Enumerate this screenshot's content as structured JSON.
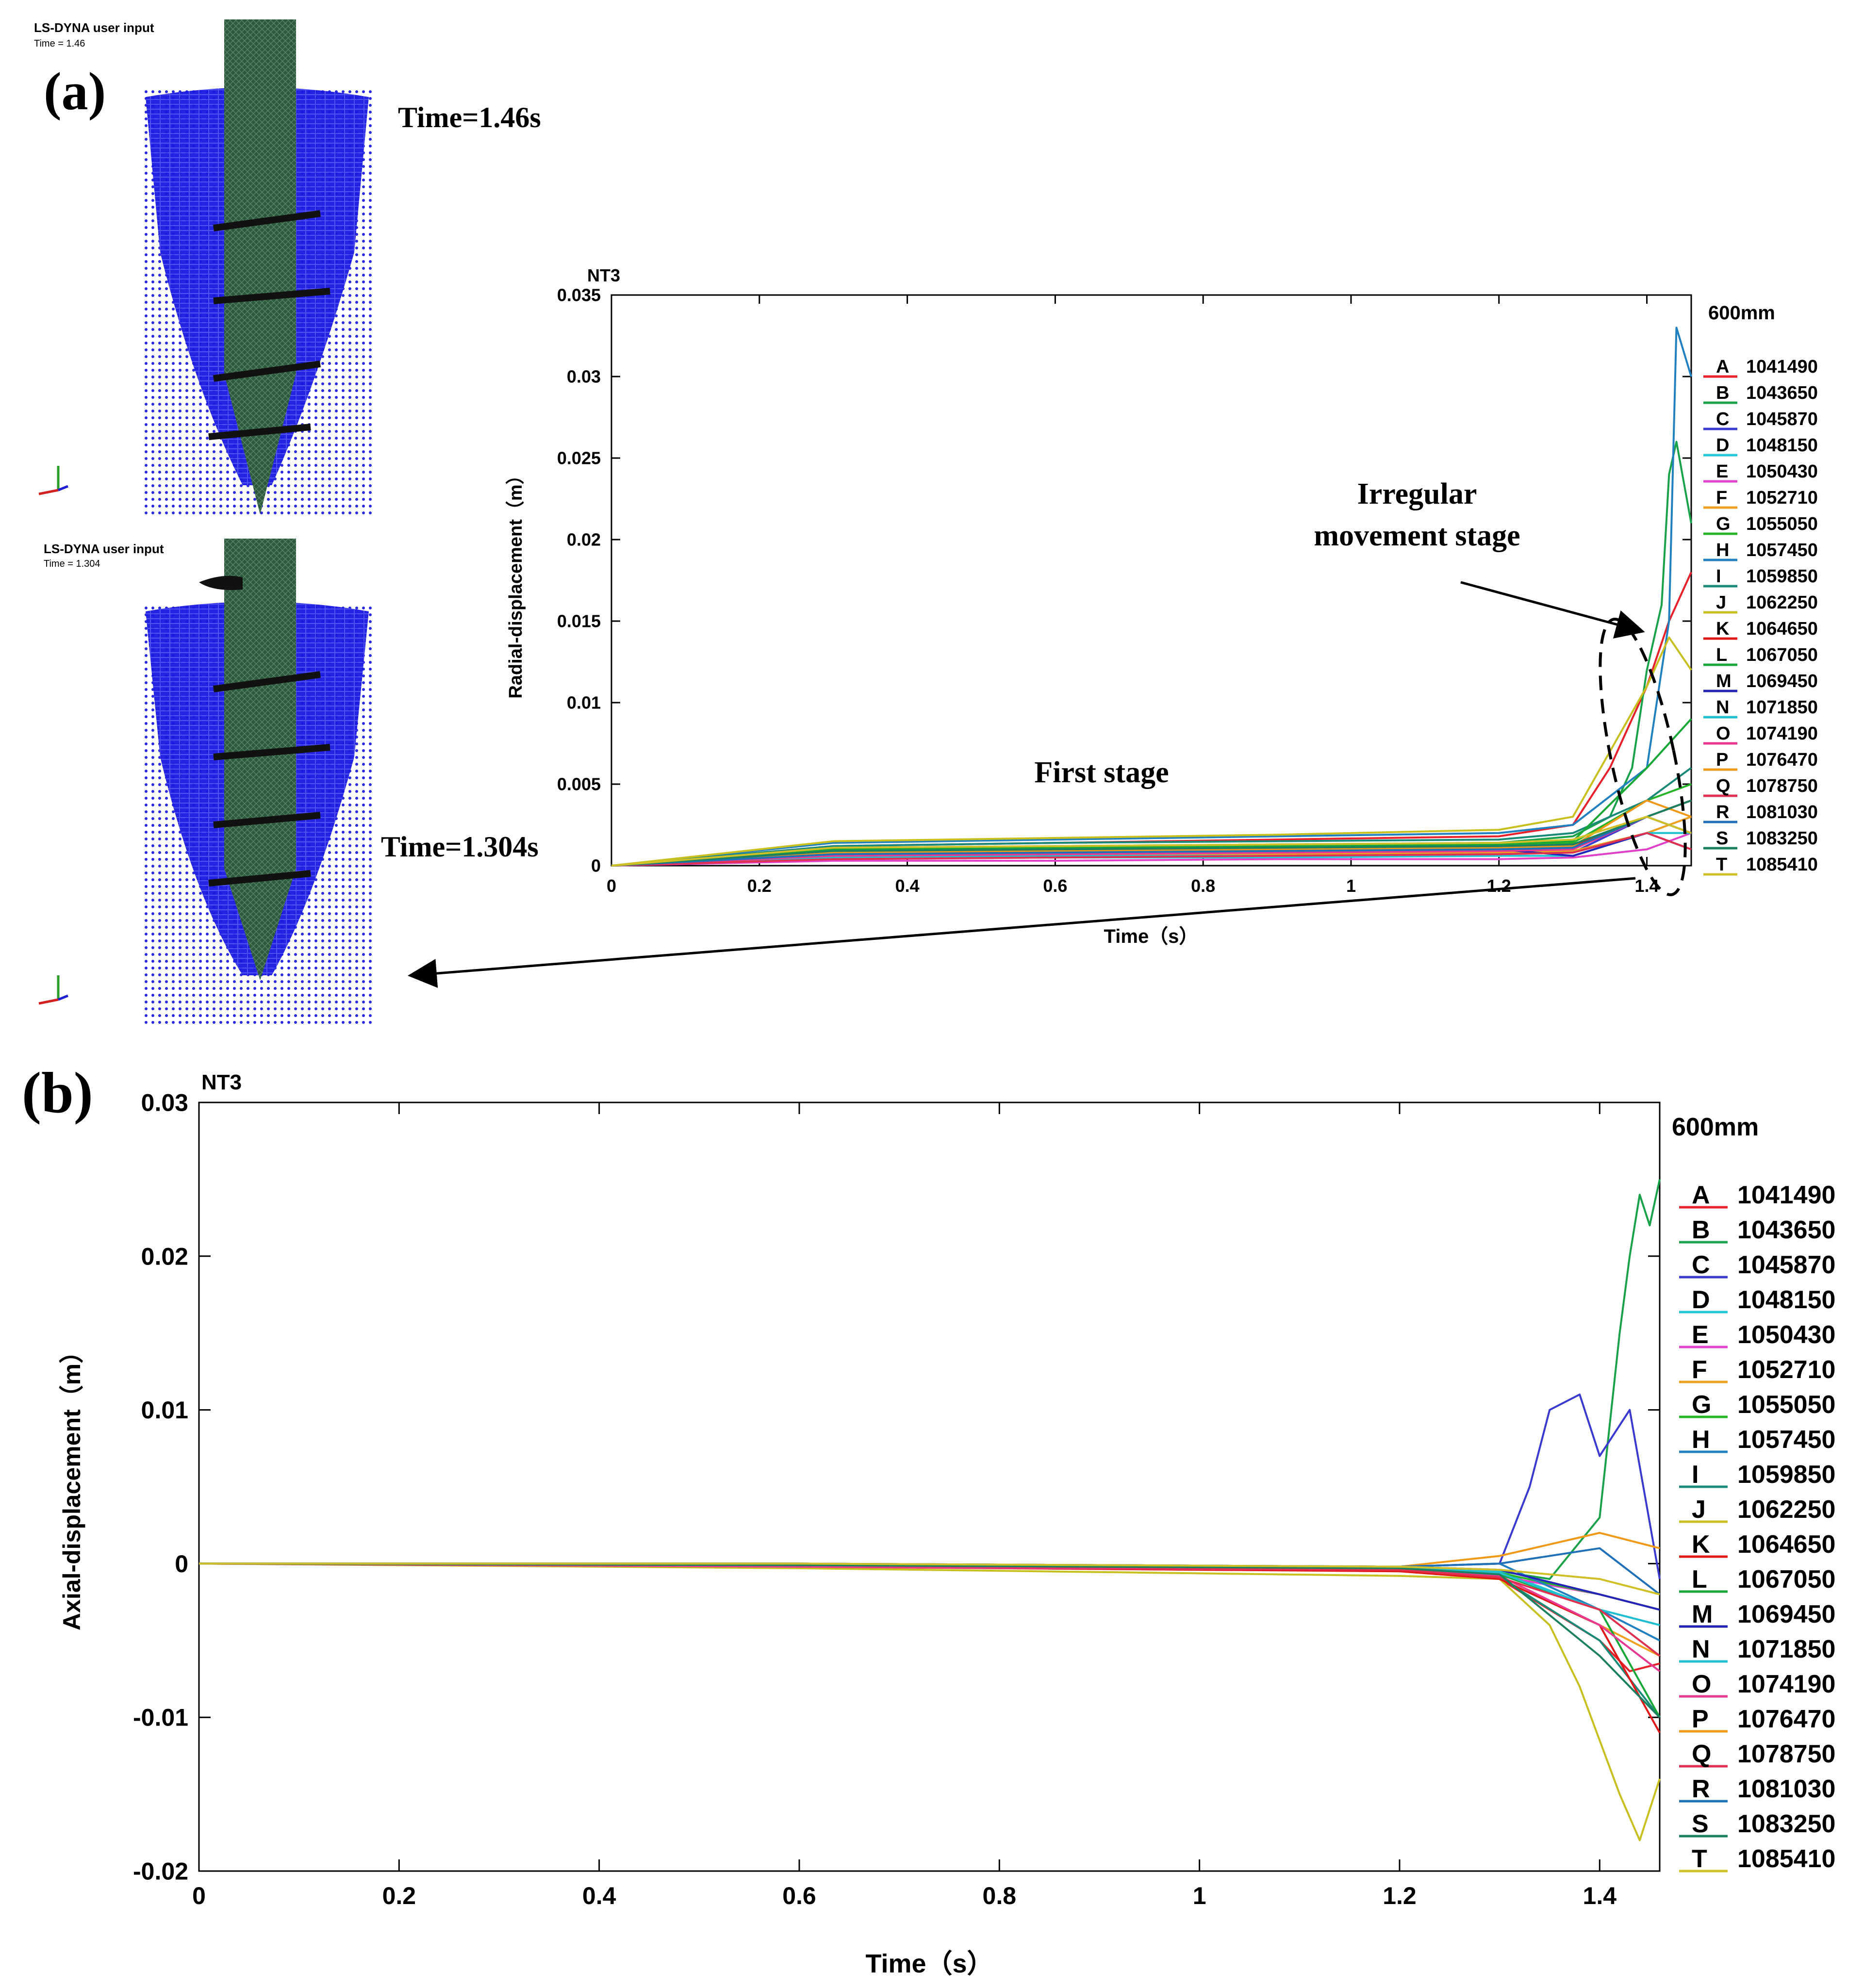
{
  "panel_a": {
    "label": "(a)",
    "sim_top": {
      "header": "LS-DYNA user input",
      "time_line": "Time =      1.46",
      "caption": "Time=1.46s"
    },
    "sim_bottom": {
      "header": "LS-DYNA user input",
      "time_line": "Time =      1.304",
      "caption": "Time=1.304s"
    },
    "annotations": {
      "irregular_line1": "Irregular",
      "irregular_line2": "movement stage",
      "first_stage": "First stage"
    }
  },
  "panel_b": {
    "label": "(b)"
  },
  "legend": {
    "title": "600mm",
    "entries": [
      {
        "letter": "A",
        "id": "1041490",
        "color": "#e8202a"
      },
      {
        "letter": "B",
        "id": "1043650",
        "color": "#1aa24a"
      },
      {
        "letter": "C",
        "id": "1045870",
        "color": "#3a3ad0"
      },
      {
        "letter": "D",
        "id": "1048150",
        "color": "#22c8d8"
      },
      {
        "letter": "E",
        "id": "1050430",
        "color": "#e040c8"
      },
      {
        "letter": "F",
        "id": "1052710",
        "color": "#f0a020"
      },
      {
        "letter": "G",
        "id": "1055050",
        "color": "#28b428"
      },
      {
        "letter": "H",
        "id": "1057450",
        "color": "#2080c0"
      },
      {
        "letter": "I",
        "id": "1059850",
        "color": "#1a8a78"
      },
      {
        "letter": "J",
        "id": "1062250",
        "color": "#c8c020"
      },
      {
        "letter": "K",
        "id": "1064650",
        "color": "#e01818"
      },
      {
        "letter": "L",
        "id": "1067050",
        "color": "#18a838"
      },
      {
        "letter": "M",
        "id": "1069450",
        "color": "#2424b8"
      },
      {
        "letter": "N",
        "id": "1071850",
        "color": "#20c0d0"
      },
      {
        "letter": "O",
        "id": "1074190",
        "color": "#e83890"
      },
      {
        "letter": "P",
        "id": "1076470",
        "color": "#f09818"
      },
      {
        "letter": "Q",
        "id": "1078750",
        "color": "#e03050"
      },
      {
        "letter": "R",
        "id": "1081030",
        "color": "#2070b8"
      },
      {
        "letter": "S",
        "id": "1083250",
        "color": "#1a8060"
      },
      {
        "letter": "T",
        "id": "1085410",
        "color": "#d0c028"
      }
    ]
  },
  "chart_data": [
    {
      "type": "line",
      "title": "NT3",
      "xlabel": "Time（s）",
      "ylabel": "Radial-displacement（m）",
      "xlim": [
        0,
        1.46
      ],
      "ylim": [
        0,
        0.035
      ],
      "xticks": [
        "0",
        "0.2",
        "0.4",
        "0.6",
        "0.8",
        "1",
        "1.2",
        "1.4"
      ],
      "yticks": [
        "0",
        "0.005",
        "0.01",
        "0.015",
        "0.02",
        "0.025",
        "0.03",
        "0.035"
      ],
      "series": [
        {
          "name": "A 1041490",
          "x": [
            0,
            0.3,
            0.6,
            0.9,
            1.2,
            1.3,
            1.35,
            1.38,
            1.4,
            1.43,
            1.46
          ],
          "y": [
            0,
            0.0012,
            0.0014,
            0.0016,
            0.0018,
            0.0025,
            0.006,
            0.009,
            0.011,
            0.015,
            0.018
          ]
        },
        {
          "name": "B 1043650",
          "x": [
            0,
            0.3,
            0.6,
            0.9,
            1.2,
            1.3,
            1.35,
            1.38,
            1.4,
            1.42,
            1.43,
            1.44,
            1.46
          ],
          "y": [
            0,
            0.001,
            0.0012,
            0.0013,
            0.0014,
            0.0018,
            0.003,
            0.006,
            0.012,
            0.016,
            0.024,
            0.026,
            0.021
          ]
        },
        {
          "name": "C 1045870",
          "x": [
            0,
            0.3,
            0.6,
            0.9,
            1.2,
            1.3,
            1.4,
            1.46
          ],
          "y": [
            0,
            0.0006,
            0.0008,
            0.0009,
            0.001,
            0.0008,
            0.003,
            0.004
          ]
        },
        {
          "name": "D 1048150",
          "x": [
            0,
            0.3,
            0.6,
            0.9,
            1.2,
            1.3,
            1.4,
            1.46
          ],
          "y": [
            0,
            0.0004,
            0.0005,
            0.0005,
            0.0006,
            0.0006,
            0.002,
            0.003
          ]
        },
        {
          "name": "E 1050430",
          "x": [
            0,
            0.3,
            0.6,
            0.9,
            1.2,
            1.3,
            1.4,
            1.46
          ],
          "y": [
            0,
            0.0003,
            0.0003,
            0.0004,
            0.0004,
            0.0005,
            0.001,
            0.002
          ]
        },
        {
          "name": "F 1052710",
          "x": [
            0,
            0.3,
            0.6,
            0.9,
            1.2,
            1.3,
            1.4,
            1.46
          ],
          "y": [
            0,
            0.0005,
            0.0006,
            0.0007,
            0.0008,
            0.0009,
            0.002,
            0.003
          ]
        },
        {
          "name": "G 1055050",
          "x": [
            0,
            0.3,
            0.6,
            0.9,
            1.2,
            1.3,
            1.4,
            1.46
          ],
          "y": [
            0,
            0.0009,
            0.001,
            0.0011,
            0.0012,
            0.0014,
            0.004,
            0.005
          ]
        },
        {
          "name": "H 1057450",
          "x": [
            0,
            0.3,
            0.6,
            0.9,
            1.2,
            1.3,
            1.4,
            1.43,
            1.44,
            1.46
          ],
          "y": [
            0,
            0.0014,
            0.0016,
            0.0018,
            0.002,
            0.0025,
            0.006,
            0.015,
            0.033,
            0.03
          ]
        },
        {
          "name": "I 1059850",
          "x": [
            0,
            0.3,
            0.6,
            0.9,
            1.2,
            1.3,
            1.4,
            1.46
          ],
          "y": [
            0,
            0.0012,
            0.0014,
            0.0015,
            0.0016,
            0.002,
            0.004,
            0.006
          ]
        },
        {
          "name": "J 1062250",
          "x": [
            0,
            0.3,
            0.6,
            0.9,
            1.2,
            1.3,
            1.35,
            1.4,
            1.43,
            1.46
          ],
          "y": [
            0,
            0.0015,
            0.0017,
            0.0019,
            0.0022,
            0.003,
            0.007,
            0.011,
            0.014,
            0.012
          ]
        },
        {
          "name": "K 1064650",
          "x": [
            0,
            0.3,
            0.6,
            0.9,
            1.2,
            1.3,
            1.4,
            1.46
          ],
          "y": [
            0,
            0.0008,
            0.0009,
            0.001,
            0.0011,
            0.0012,
            0.003,
            0.004
          ]
        },
        {
          "name": "L 1067050",
          "x": [
            0,
            0.3,
            0.6,
            0.9,
            1.2,
            1.3,
            1.4,
            1.46
          ],
          "y": [
            0,
            0.001,
            0.0011,
            0.0012,
            0.0013,
            0.0015,
            0.006,
            0.009
          ]
        },
        {
          "name": "M 1069450",
          "x": [
            0,
            0.3,
            0.6,
            0.9,
            1.2,
            1.3,
            1.4,
            1.46
          ],
          "y": [
            0,
            0.0007,
            0.0008,
            0.0009,
            0.001,
            0.0006,
            0.002,
            0.001
          ]
        },
        {
          "name": "N 1071850",
          "x": [
            0,
            0.3,
            0.6,
            0.9,
            1.2,
            1.3,
            1.4,
            1.46
          ],
          "y": [
            0,
            0.0005,
            0.0006,
            0.0006,
            0.0007,
            0.0008,
            0.002,
            0.002
          ]
        },
        {
          "name": "O 1074190",
          "x": [
            0,
            0.3,
            0.6,
            0.9,
            1.2,
            1.3,
            1.4,
            1.46
          ],
          "y": [
            0,
            0.0006,
            0.0007,
            0.0008,
            0.0009,
            0.001,
            0.003,
            0.002
          ]
        },
        {
          "name": "P 1076470",
          "x": [
            0,
            0.3,
            0.6,
            0.9,
            1.2,
            1.3,
            1.4,
            1.46
          ],
          "y": [
            0,
            0.0008,
            0.0009,
            0.001,
            0.0011,
            0.0012,
            0.004,
            0.003
          ]
        },
        {
          "name": "Q 1078750",
          "x": [
            0,
            0.3,
            0.6,
            0.9,
            1.2,
            1.3,
            1.4,
            1.46
          ],
          "y": [
            0,
            0.0004,
            0.0005,
            0.0006,
            0.0007,
            0.0008,
            0.002,
            0.001
          ]
        },
        {
          "name": "R 1081030",
          "x": [
            0,
            0.3,
            0.6,
            0.9,
            1.2,
            1.3,
            1.4,
            1.46
          ],
          "y": [
            0,
            0.0007,
            0.0008,
            0.0009,
            0.001,
            0.0011,
            0.003,
            0.002
          ]
        },
        {
          "name": "S 1083250",
          "x": [
            0,
            0.3,
            0.6,
            0.9,
            1.2,
            1.3,
            1.4,
            1.46
          ],
          "y": [
            0,
            0.0009,
            0.001,
            0.0011,
            0.0012,
            0.0013,
            0.003,
            0.004
          ]
        },
        {
          "name": "T 1085410",
          "x": [
            0,
            0.3,
            0.6,
            0.9,
            1.2,
            1.3,
            1.4,
            1.46
          ],
          "y": [
            0,
            0.0011,
            0.0012,
            0.0013,
            0.0014,
            0.0016,
            0.003,
            0.002
          ]
        }
      ]
    },
    {
      "type": "line",
      "title": "NT3",
      "xlabel": "Time（s）",
      "ylabel": "Axial-displacement（m）",
      "xlim": [
        0,
        1.46
      ],
      "ylim": [
        -0.02,
        0.03
      ],
      "xticks": [
        "0",
        "0.2",
        "0.4",
        "0.6",
        "0.8",
        "1",
        "1.2",
        "1.4"
      ],
      "yticks": [
        "-0.02",
        "-0.01",
        "0",
        "0.01",
        "0.02",
        "0.03"
      ],
      "series": [
        {
          "name": "A 1041490",
          "x": [
            0,
            0.6,
            1.2,
            1.3,
            1.35,
            1.4,
            1.43,
            1.46
          ],
          "y": [
            0,
            -0.0002,
            -0.0004,
            -0.001,
            -0.003,
            -0.005,
            -0.007,
            -0.0065
          ]
        },
        {
          "name": "B 1043650",
          "x": [
            0,
            0.6,
            1.2,
            1.3,
            1.35,
            1.4,
            1.42,
            1.43,
            1.44,
            1.45,
            1.46
          ],
          "y": [
            0,
            -0.0001,
            -0.0003,
            -0.0005,
            -0.001,
            0.003,
            0.015,
            0.02,
            0.024,
            0.022,
            0.025
          ]
        },
        {
          "name": "C 1045870",
          "x": [
            0,
            0.6,
            1.2,
            1.3,
            1.33,
            1.35,
            1.38,
            1.4,
            1.43,
            1.46
          ],
          "y": [
            0,
            0,
            -0.0002,
            0,
            0.005,
            0.01,
            0.011,
            0.007,
            0.01,
            -0.001
          ]
        },
        {
          "name": "D 1048150",
          "x": [
            0,
            0.6,
            1.2,
            1.3,
            1.4,
            1.46
          ],
          "y": [
            0,
            0,
            -0.0002,
            -0.0005,
            -0.003,
            -0.004
          ]
        },
        {
          "name": "E 1050430",
          "x": [
            0,
            0.6,
            1.2,
            1.3,
            1.4,
            1.46
          ],
          "y": [
            0,
            -0.0001,
            -0.0003,
            -0.0008,
            -0.002,
            -0.003
          ]
        },
        {
          "name": "F 1052710",
          "x": [
            0,
            0.6,
            1.2,
            1.3,
            1.4,
            1.46
          ],
          "y": [
            0,
            -0.0002,
            -0.0005,
            -0.001,
            -0.004,
            -0.006
          ]
        },
        {
          "name": "G 1055050",
          "x": [
            0,
            0.6,
            1.2,
            1.3,
            1.4,
            1.46
          ],
          "y": [
            0,
            -0.0001,
            -0.0003,
            -0.0006,
            -0.002,
            -0.003
          ]
        },
        {
          "name": "H 1057450",
          "x": [
            0,
            0.6,
            1.2,
            1.3,
            1.4,
            1.46
          ],
          "y": [
            0,
            0,
            -0.0002,
            0,
            -0.003,
            -0.005
          ]
        },
        {
          "name": "I 1059850",
          "x": [
            0,
            0.6,
            1.2,
            1.3,
            1.4,
            1.46
          ],
          "y": [
            0,
            -0.0001,
            -0.0004,
            -0.0009,
            -0.005,
            -0.01
          ]
        },
        {
          "name": "J 1062250",
          "x": [
            0,
            0.6,
            1.2,
            1.3,
            1.35,
            1.38,
            1.42,
            1.44,
            1.46
          ],
          "y": [
            0,
            -0.0003,
            -0.0008,
            -0.001,
            -0.004,
            -0.008,
            -0.015,
            -0.018,
            -0.014
          ]
        },
        {
          "name": "K 1064650",
          "x": [
            0,
            0.6,
            1.2,
            1.3,
            1.4,
            1.46
          ],
          "y": [
            0,
            -0.0002,
            -0.0005,
            -0.001,
            -0.004,
            -0.011
          ]
        },
        {
          "name": "L 1067050",
          "x": [
            0,
            0.6,
            1.2,
            1.3,
            1.4,
            1.46
          ],
          "y": [
            0,
            -0.0001,
            -0.0003,
            -0.0007,
            -0.003,
            -0.01
          ]
        },
        {
          "name": "M 1069450",
          "x": [
            0,
            0.6,
            1.2,
            1.3,
            1.4,
            1.46
          ],
          "y": [
            0,
            0,
            -0.0002,
            -0.0004,
            -0.002,
            -0.003
          ]
        },
        {
          "name": "N 1071850",
          "x": [
            0,
            0.6,
            1.2,
            1.3,
            1.4,
            1.46
          ],
          "y": [
            0,
            -0.0001,
            -0.0003,
            -0.0006,
            -0.003,
            -0.004
          ]
        },
        {
          "name": "O 1074190",
          "x": [
            0,
            0.6,
            1.2,
            1.3,
            1.4,
            1.46
          ],
          "y": [
            0,
            -0.0002,
            -0.0004,
            -0.0008,
            -0.004,
            -0.007
          ]
        },
        {
          "name": "P 1076470",
          "x": [
            0,
            0.6,
            1.2,
            1.3,
            1.4,
            1.46
          ],
          "y": [
            0,
            0,
            -0.0002,
            0.0005,
            0.002,
            0.001
          ]
        },
        {
          "name": "Q 1078750",
          "x": [
            0,
            0.6,
            1.2,
            1.3,
            1.4,
            1.46
          ],
          "y": [
            0,
            -0.0001,
            -0.0004,
            -0.0009,
            -0.003,
            -0.006
          ]
        },
        {
          "name": "R 1081030",
          "x": [
            0,
            0.6,
            1.2,
            1.3,
            1.4,
            1.46
          ],
          "y": [
            0,
            0,
            -0.0002,
            0,
            0.001,
            -0.002
          ]
        },
        {
          "name": "S 1083250",
          "x": [
            0,
            0.6,
            1.2,
            1.3,
            1.4,
            1.46
          ],
          "y": [
            0,
            -0.0001,
            -0.0003,
            -0.0007,
            -0.006,
            -0.01
          ]
        },
        {
          "name": "T 1085410",
          "x": [
            0,
            0.6,
            1.2,
            1.3,
            1.4,
            1.46
          ],
          "y": [
            0,
            0,
            -0.0002,
            -0.0004,
            -0.001,
            -0.002
          ]
        }
      ]
    }
  ]
}
